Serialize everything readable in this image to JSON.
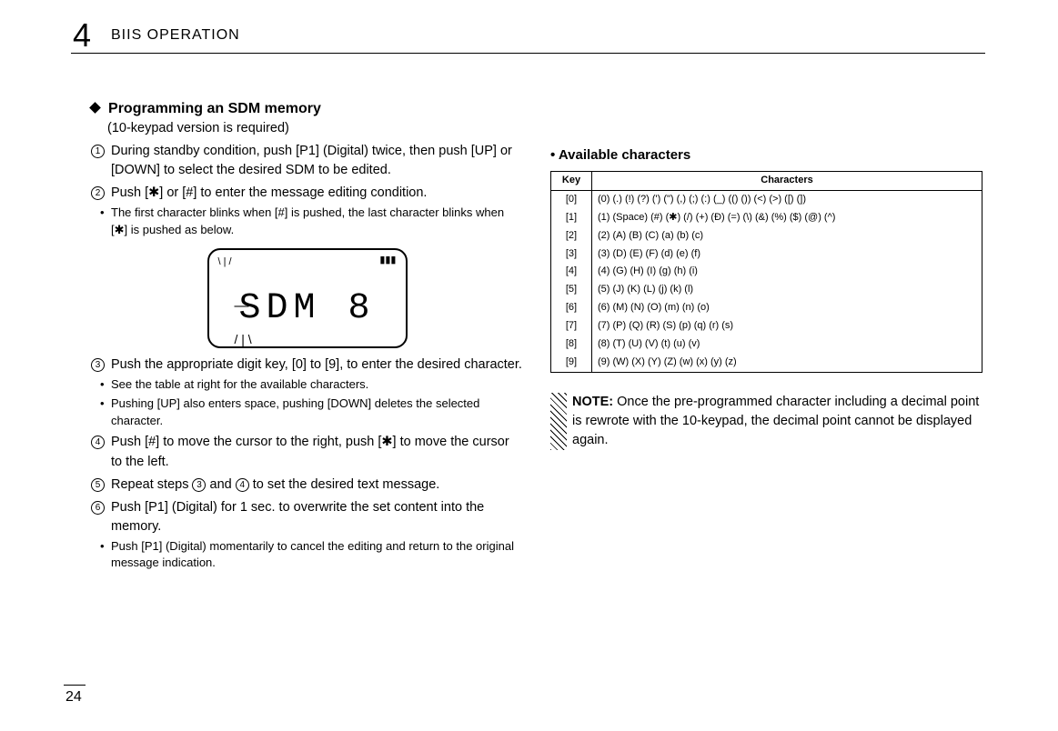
{
  "chapter": {
    "number": "4",
    "title": "BIIS OPERATION"
  },
  "page_number": "24",
  "left": {
    "heading": "Programming an SDM memory",
    "subheading": "(10-keypad version is required)",
    "step1": "During standby condition, push [P1] (Digital) twice, then push [UP] or [DOWN] to select the desired SDM to be edited.",
    "step2": "Push [✱] or [#] to enter the message editing condition.",
    "step2_sub": "The first character blinks when [#] is pushed, the last character blinks when [✱] is pushed as below.",
    "lcd_text": "SDM 8",
    "step3": "Push the appropriate digit key, [0] to [9], to enter the desired character.",
    "step3_sub1": "See the table at right for the available characters.",
    "step3_sub2": "Pushing [UP] also enters space, pushing [DOWN] deletes the selected character.",
    "step4": "Push [#] to move the cursor to the right, push [✱] to move the cursor to the left.",
    "step5_a": "Repeat steps ",
    "step5_b": " and ",
    "step5_c": " to set the desired text message.",
    "step6": "Push [P1] (Digital) for 1 sec. to overwrite the set content into the memory.",
    "step6_sub": "Push [P1] (Digital) momentarily to cancel the editing and return to the original message indication."
  },
  "right": {
    "avail_heading": "• Available characters",
    "th_key": "Key",
    "th_chars": "Characters",
    "rows": [
      {
        "key": "[0]",
        "chars": "(0)  (.)  (!)  (?)  (')  (\")  (,)  (;)  (:)  (_)  (()  ())  (<)  (>)  ([)  (])"
      },
      {
        "key": "[1]",
        "chars": "(1)  (Space)  (#)  (✱)  (/)  (+)  (Đ)  (=)  (\\)  (&)  (%)  ($)  (@)  (^)"
      },
      {
        "key": "[2]",
        "chars": "(2)  (A)  (B)  (C)  (a)  (b)  (c)"
      },
      {
        "key": "[3]",
        "chars": "(3)  (D)  (E)  (F)  (d)  (e)  (f)"
      },
      {
        "key": "[4]",
        "chars": "(4)  (G)  (H)  (I)  (g)  (h)  (i)"
      },
      {
        "key": "[5]",
        "chars": "(5)  (J)  (K)  (L)  (j)  (k)  (l)"
      },
      {
        "key": "[6]",
        "chars": "(6)  (M)  (N)  (O)  (m)  (n)  (o)"
      },
      {
        "key": "[7]",
        "chars": "(7)  (P)  (Q)  (R)  (S)  (p)  (q)  (r)  (s)"
      },
      {
        "key": "[8]",
        "chars": "(8)  (T)  (U)  (V)  (t)  (u)  (v)"
      },
      {
        "key": "[9]",
        "chars": "(9)  (W)  (X)  (Y)  (Z)  (w)  (x)  (y)  (z)"
      }
    ],
    "note_label": "NOTE:",
    "note_body": " Once the pre-programmed character including a decimal point is rewrote with the 10-keypad, the decimal point cannot be displayed again."
  }
}
